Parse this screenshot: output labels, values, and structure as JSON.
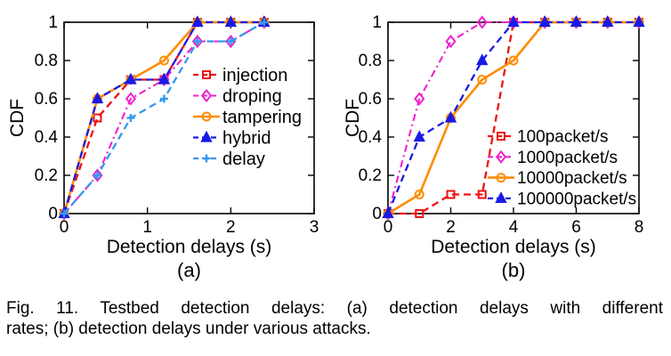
{
  "figure": {
    "caption": {
      "line1": "Fig. 11. Testbed detection delays: (a) detection delays with different",
      "line2": "rates; (b) detection delays under various attacks."
    }
  },
  "chart_data": [
    {
      "id": "chart-a",
      "type": "line",
      "title": "",
      "xlabel": "Detection delays (s)",
      "ylabel": "CDF",
      "panel_label": "(a)",
      "xlim": [
        0,
        3
      ],
      "ylim": [
        0,
        1
      ],
      "xticks": [
        "0",
        "1",
        "2",
        "3"
      ],
      "xtick_values": [
        0,
        1,
        2,
        3
      ],
      "yticks": [
        "0",
        "0.2",
        "0.4",
        "0.6",
        "0.8",
        "1"
      ],
      "ytick_values": [
        0,
        0.2,
        0.4,
        0.6,
        0.8,
        1
      ],
      "grid": false,
      "legend_position": "inside-right-middle",
      "x": [
        0,
        0.4,
        0.8,
        1.2,
        1.6,
        2,
        2.4
      ],
      "series": [
        {
          "name": "injection",
          "color": "#ee1111",
          "line": "dashed",
          "marker": "square",
          "marker_filled": false,
          "y": [
            0,
            0.5,
            0.7,
            0.7,
            1,
            1,
            1
          ]
        },
        {
          "name": "droping",
          "color": "#ee22cc",
          "line": "dashdot",
          "marker": "diamond",
          "marker_filled": false,
          "y": [
            0,
            0.2,
            0.6,
            0.7,
            0.9,
            0.9,
            1
          ]
        },
        {
          "name": "tampering",
          "color": "#ff8c00",
          "line": "solid",
          "marker": "circle",
          "marker_filled": false,
          "y": [
            0,
            0.6,
            0.7,
            0.8,
            1,
            1,
            1
          ]
        },
        {
          "name": "hybrid",
          "color": "#1a1ae6",
          "line": "dashed",
          "marker": "triangle",
          "marker_filled": true,
          "y": [
            0,
            0.6,
            0.7,
            0.7,
            1,
            1,
            1
          ]
        },
        {
          "name": "delay",
          "color": "#3399ee",
          "line": "dashed",
          "marker": "plus",
          "marker_filled": false,
          "y": [
            0,
            0.2,
            0.5,
            0.6,
            0.9,
            0.9,
            1
          ]
        }
      ]
    },
    {
      "id": "chart-b",
      "type": "line",
      "title": "",
      "xlabel": "Detection delays (s)",
      "ylabel": "CDF",
      "panel_label": "(b)",
      "xlim": [
        0,
        8
      ],
      "ylim": [
        0,
        1
      ],
      "xticks": [
        "0",
        "2",
        "4",
        "6",
        "8"
      ],
      "xtick_values": [
        0,
        2,
        4,
        6,
        8
      ],
      "yticks": [
        "0",
        "0.2",
        "0.4",
        "0.6",
        "0.8",
        "1"
      ],
      "ytick_values": [
        0,
        0.2,
        0.4,
        0.6,
        0.8,
        1
      ],
      "grid": false,
      "legend_position": "inside-right-lower",
      "x": [
        0,
        1,
        2,
        3,
        4,
        5,
        6,
        7,
        8
      ],
      "series": [
        {
          "name": "100packet/s",
          "color": "#ee1111",
          "line": "dashed",
          "marker": "square",
          "marker_filled": false,
          "y": [
            0,
            0,
            0.1,
            0.1,
            1,
            1,
            1,
            1,
            1
          ]
        },
        {
          "name": "1000packet/s",
          "color": "#ee22cc",
          "line": "dashdot",
          "marker": "diamond",
          "marker_filled": false,
          "y": [
            0,
            0.6,
            0.9,
            1,
            1,
            1,
            1,
            1,
            1
          ]
        },
        {
          "name": "10000packet/s",
          "color": "#ff8c00",
          "line": "solid",
          "marker": "circle",
          "marker_filled": false,
          "y": [
            0,
            0.1,
            0.5,
            0.7,
            0.8,
            1,
            1,
            1,
            1
          ]
        },
        {
          "name": "100000packet/s",
          "color": "#1a1ae6",
          "line": "dashed",
          "marker": "triangle",
          "marker_filled": true,
          "y": [
            0,
            0.4,
            0.5,
            0.8,
            1,
            1,
            1,
            1,
            1
          ]
        }
      ]
    }
  ]
}
